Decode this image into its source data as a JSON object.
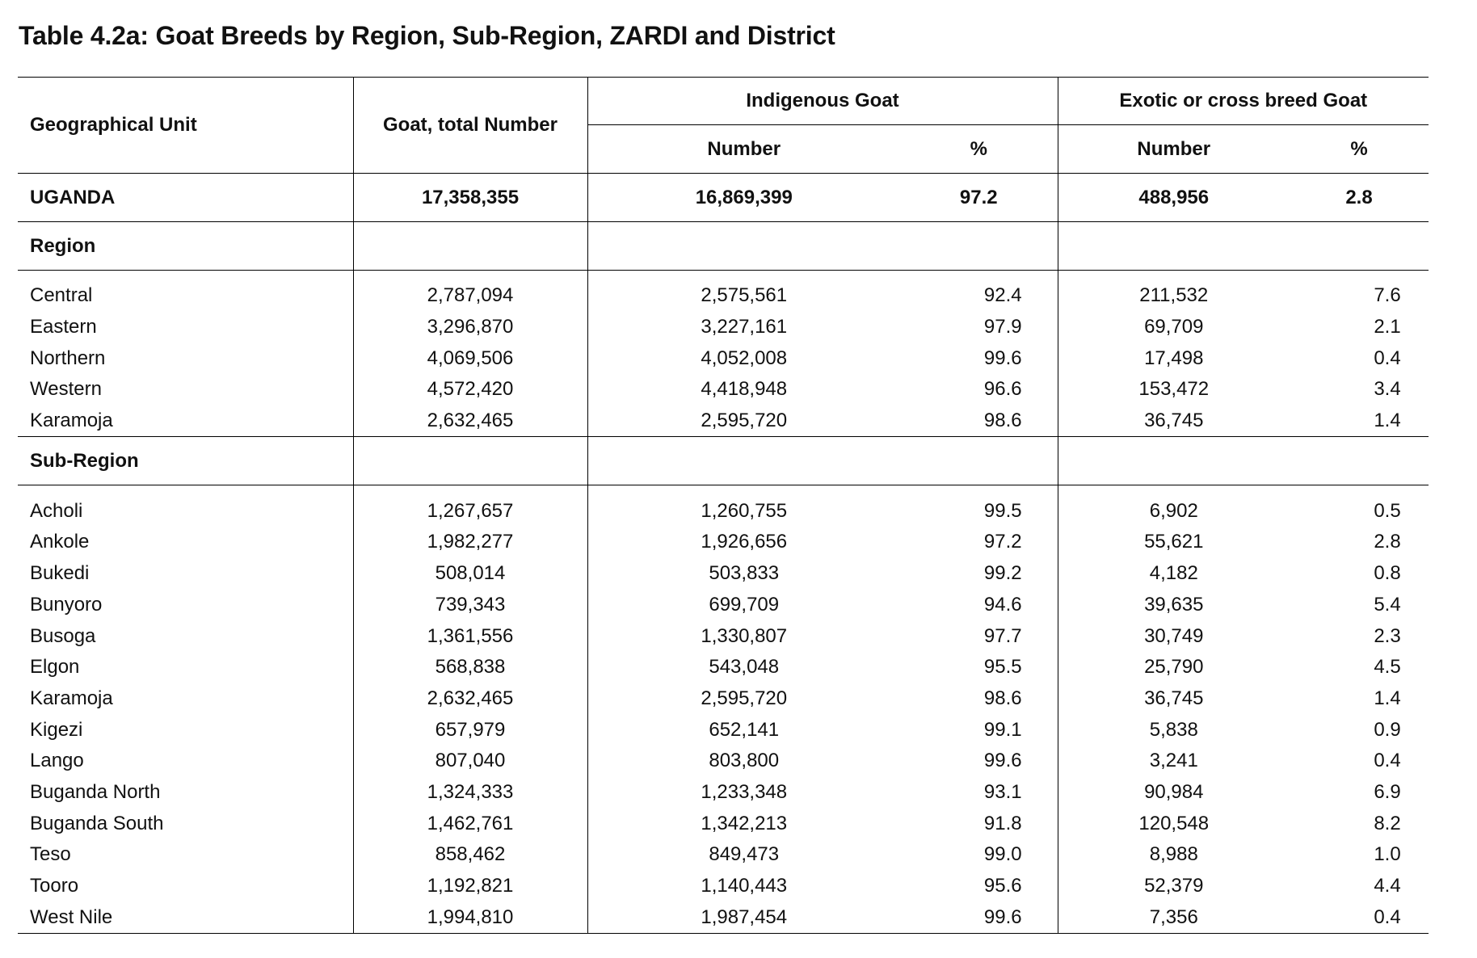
{
  "title": "Table 4.2a: Goat Breeds by Region, Sub-Region, ZARDI and District",
  "headers": {
    "geo_unit": "Geographical Unit",
    "goat_total": "Goat, total Number",
    "indigenous": "Indigenous Goat",
    "exotic": "Exotic or cross breed Goat",
    "number": "Number",
    "percent": "%"
  },
  "total": {
    "name": "UGANDA",
    "total": "17,358,355",
    "ind_num": "16,869,399",
    "ind_pct": "97.2",
    "exo_num": "488,956",
    "exo_pct": "2.8"
  },
  "sections": [
    {
      "label": "Region",
      "rows": [
        {
          "name": "Central",
          "total": "2,787,094",
          "ind_num": "2,575,561",
          "ind_pct": "92.4",
          "exo_num": "211,532",
          "exo_pct": "7.6"
        },
        {
          "name": "Eastern",
          "total": "3,296,870",
          "ind_num": "3,227,161",
          "ind_pct": "97.9",
          "exo_num": "69,709",
          "exo_pct": "2.1"
        },
        {
          "name": "Northern",
          "total": "4,069,506",
          "ind_num": "4,052,008",
          "ind_pct": "99.6",
          "exo_num": "17,498",
          "exo_pct": "0.4"
        },
        {
          "name": "Western",
          "total": "4,572,420",
          "ind_num": "4,418,948",
          "ind_pct": "96.6",
          "exo_num": "153,472",
          "exo_pct": "3.4"
        },
        {
          "name": "Karamoja",
          "total": "2,632,465",
          "ind_num": "2,595,720",
          "ind_pct": "98.6",
          "exo_num": "36,745",
          "exo_pct": "1.4"
        }
      ]
    },
    {
      "label": "Sub-Region",
      "rows": [
        {
          "name": "Acholi",
          "total": "1,267,657",
          "ind_num": "1,260,755",
          "ind_pct": "99.5",
          "exo_num": "6,902",
          "exo_pct": "0.5"
        },
        {
          "name": "Ankole",
          "total": "1,982,277",
          "ind_num": "1,926,656",
          "ind_pct": "97.2",
          "exo_num": "55,621",
          "exo_pct": "2.8"
        },
        {
          "name": "Bukedi",
          "total": "508,014",
          "ind_num": "503,833",
          "ind_pct": "99.2",
          "exo_num": "4,182",
          "exo_pct": "0.8"
        },
        {
          "name": "Bunyoro",
          "total": "739,343",
          "ind_num": "699,709",
          "ind_pct": "94.6",
          "exo_num": "39,635",
          "exo_pct": "5.4"
        },
        {
          "name": "Busoga",
          "total": "1,361,556",
          "ind_num": "1,330,807",
          "ind_pct": "97.7",
          "exo_num": "30,749",
          "exo_pct": "2.3"
        },
        {
          "name": "Elgon",
          "total": "568,838",
          "ind_num": "543,048",
          "ind_pct": "95.5",
          "exo_num": "25,790",
          "exo_pct": "4.5"
        },
        {
          "name": "Karamoja",
          "total": "2,632,465",
          "ind_num": "2,595,720",
          "ind_pct": "98.6",
          "exo_num": "36,745",
          "exo_pct": "1.4"
        },
        {
          "name": "Kigezi",
          "total": "657,979",
          "ind_num": "652,141",
          "ind_pct": "99.1",
          "exo_num": "5,838",
          "exo_pct": "0.9"
        },
        {
          "name": "Lango",
          "total": "807,040",
          "ind_num": "803,800",
          "ind_pct": "99.6",
          "exo_num": "3,241",
          "exo_pct": "0.4"
        },
        {
          "name": "Buganda North",
          "total": "1,324,333",
          "ind_num": "1,233,348",
          "ind_pct": "93.1",
          "exo_num": "90,984",
          "exo_pct": "6.9"
        },
        {
          "name": "Buganda South",
          "total": "1,462,761",
          "ind_num": "1,342,213",
          "ind_pct": "91.8",
          "exo_num": "120,548",
          "exo_pct": "8.2"
        },
        {
          "name": "Teso",
          "total": "858,462",
          "ind_num": "849,473",
          "ind_pct": "99.0",
          "exo_num": "8,988",
          "exo_pct": "1.0"
        },
        {
          "name": "Tooro",
          "total": "1,192,821",
          "ind_num": "1,140,443",
          "ind_pct": "95.6",
          "exo_num": "52,379",
          "exo_pct": "4.4"
        },
        {
          "name": "West Nile",
          "total": "1,994,810",
          "ind_num": "1,987,454",
          "ind_pct": "99.6",
          "exo_num": "7,356",
          "exo_pct": "0.4"
        }
      ]
    }
  ]
}
